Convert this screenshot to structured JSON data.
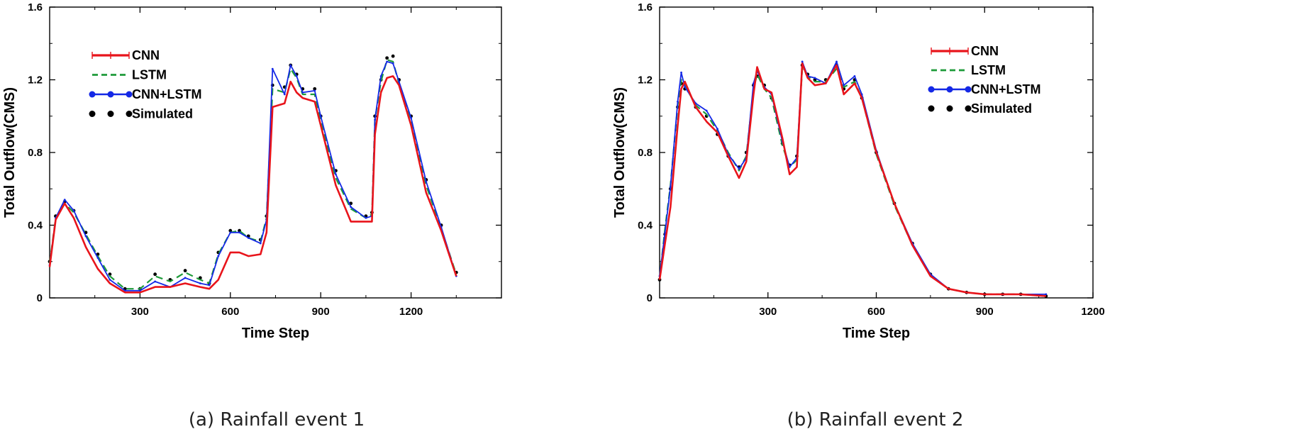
{
  "colors": {
    "CNN": "#e8141b",
    "LSTM": "#1e9b3a",
    "CNN+LSTM": "#1428e6",
    "Simulated": "#000000"
  },
  "chart_data": [
    {
      "type": "line",
      "caption": "(a) Rainfall event 1",
      "xlabel": "Time Step",
      "ylabel": "Total Outflow(CMS)",
      "xlim": [
        0,
        1500
      ],
      "ylim": [
        0,
        1.6
      ],
      "xticks": [
        "300",
        "600",
        "900",
        "1200"
      ],
      "yticks": [
        "0",
        "0.4",
        "0.8",
        "1.2",
        "1.6"
      ],
      "legend": {
        "position": "top-left",
        "labels": [
          "CNN",
          "LSTM",
          "CNN+LSTM",
          "Simulated"
        ]
      },
      "series": [
        {
          "name": "Simulated",
          "x": [
            0,
            20,
            50,
            80,
            120,
            160,
            200,
            250,
            300,
            350,
            400,
            450,
            500,
            530,
            560,
            600,
            630,
            660,
            700,
            720,
            740,
            780,
            800,
            820,
            840,
            880,
            900,
            950,
            1000,
            1050,
            1070,
            1080,
            1100,
            1120,
            1140,
            1160,
            1200,
            1250,
            1300,
            1350
          ],
          "y": [
            0.2,
            0.45,
            0.53,
            0.48,
            0.36,
            0.24,
            0.13,
            0.05,
            0.05,
            0.13,
            0.1,
            0.15,
            0.11,
            0.08,
            0.25,
            0.37,
            0.37,
            0.34,
            0.32,
            0.45,
            1.17,
            1.16,
            1.28,
            1.23,
            1.15,
            1.15,
            1.0,
            0.7,
            0.52,
            0.45,
            0.47,
            1.0,
            1.2,
            1.32,
            1.33,
            1.2,
            1.0,
            0.65,
            0.4,
            0.14
          ]
        },
        {
          "name": "LSTM",
          "x": [
            0,
            20,
            50,
            80,
            120,
            160,
            200,
            250,
            300,
            350,
            400,
            450,
            500,
            530,
            560,
            600,
            630,
            660,
            700,
            720,
            740,
            780,
            800,
            820,
            840,
            880,
            900,
            950,
            1000,
            1050,
            1070,
            1080,
            1100,
            1120,
            1140,
            1160,
            1200,
            1250,
            1300,
            1350
          ],
          "y": [
            0.19,
            0.44,
            0.52,
            0.47,
            0.35,
            0.23,
            0.12,
            0.05,
            0.05,
            0.12,
            0.09,
            0.14,
            0.1,
            0.08,
            0.24,
            0.36,
            0.37,
            0.33,
            0.31,
            0.44,
            1.15,
            1.13,
            1.26,
            1.21,
            1.12,
            1.12,
            0.97,
            0.66,
            0.49,
            0.44,
            0.46,
            0.98,
            1.19,
            1.31,
            1.3,
            1.18,
            0.98,
            0.62,
            0.38,
            0.13
          ]
        },
        {
          "name": "CNN+LSTM",
          "x": [
            0,
            20,
            50,
            80,
            120,
            160,
            200,
            250,
            300,
            350,
            400,
            450,
            500,
            530,
            560,
            600,
            630,
            660,
            700,
            720,
            740,
            780,
            800,
            820,
            840,
            880,
            900,
            950,
            1000,
            1050,
            1070,
            1080,
            1100,
            1120,
            1140,
            1160,
            1200,
            1250,
            1300,
            1350
          ],
          "y": [
            0.18,
            0.44,
            0.54,
            0.48,
            0.34,
            0.22,
            0.1,
            0.04,
            0.04,
            0.09,
            0.06,
            0.11,
            0.08,
            0.07,
            0.23,
            0.36,
            0.36,
            0.33,
            0.3,
            0.43,
            1.26,
            1.12,
            1.28,
            1.22,
            1.13,
            1.14,
            1.0,
            0.68,
            0.5,
            0.44,
            0.45,
            0.98,
            1.22,
            1.3,
            1.29,
            1.19,
            0.99,
            0.64,
            0.39,
            0.12
          ]
        },
        {
          "name": "CNN",
          "x": [
            0,
            20,
            50,
            80,
            120,
            160,
            200,
            250,
            300,
            350,
            400,
            450,
            500,
            530,
            560,
            600,
            630,
            660,
            700,
            720,
            740,
            780,
            800,
            820,
            840,
            880,
            900,
            950,
            1000,
            1050,
            1070,
            1080,
            1100,
            1120,
            1140,
            1160,
            1200,
            1250,
            1300,
            1350
          ],
          "y": [
            0.17,
            0.43,
            0.52,
            0.44,
            0.28,
            0.16,
            0.08,
            0.03,
            0.03,
            0.06,
            0.06,
            0.08,
            0.06,
            0.05,
            0.1,
            0.25,
            0.25,
            0.23,
            0.24,
            0.36,
            1.05,
            1.07,
            1.19,
            1.13,
            1.1,
            1.08,
            0.95,
            0.62,
            0.42,
            0.42,
            0.42,
            0.9,
            1.13,
            1.21,
            1.22,
            1.17,
            0.95,
            0.58,
            0.37,
            0.12
          ]
        }
      ]
    },
    {
      "type": "line",
      "caption": "(b) Rainfall event 2",
      "xlabel": "Time Step",
      "ylabel": "Total Outflow(CMS)",
      "xlim": [
        0,
        1200
      ],
      "ylim": [
        0,
        1.6
      ],
      "xticks": [
        "300",
        "600",
        "900",
        "1200"
      ],
      "yticks": [
        "0",
        "0.4",
        "0.8",
        "1.2",
        "1.6"
      ],
      "legend": {
        "position": "top-right",
        "labels": [
          "CNN",
          "LSTM",
          "CNN+LSTM",
          "Simulated"
        ]
      },
      "series": [
        {
          "name": "Simulated",
          "x": [
            0,
            15,
            30,
            50,
            60,
            70,
            100,
            130,
            160,
            190,
            220,
            240,
            260,
            270,
            290,
            310,
            340,
            360,
            380,
            395,
            410,
            430,
            460,
            490,
            510,
            540,
            560,
            600,
            650,
            700,
            750,
            800,
            850,
            900,
            950,
            1000,
            1070
          ],
          "y": [
            0.1,
            0.35,
            0.6,
            1.05,
            1.18,
            1.15,
            1.05,
            1.0,
            0.9,
            0.78,
            0.72,
            0.8,
            1.17,
            1.22,
            1.17,
            1.1,
            0.85,
            0.73,
            0.78,
            1.28,
            1.23,
            1.2,
            1.2,
            1.28,
            1.15,
            1.2,
            1.1,
            0.8,
            0.52,
            0.3,
            0.13,
            0.05,
            0.03,
            0.02,
            0.02,
            0.02,
            0.01
          ]
        },
        {
          "name": "LSTM",
          "x": [
            0,
            15,
            30,
            50,
            60,
            70,
            100,
            130,
            160,
            190,
            220,
            240,
            260,
            270,
            290,
            310,
            340,
            360,
            380,
            395,
            410,
            430,
            460,
            490,
            510,
            540,
            560,
            600,
            650,
            700,
            750,
            800,
            850,
            900,
            950,
            1000,
            1070
          ],
          "y": [
            0.11,
            0.38,
            0.62,
            1.06,
            1.2,
            1.17,
            1.06,
            1.01,
            0.92,
            0.8,
            0.7,
            0.78,
            1.15,
            1.23,
            1.15,
            1.1,
            0.84,
            0.72,
            0.76,
            1.26,
            1.22,
            1.19,
            1.19,
            1.26,
            1.16,
            1.19,
            1.1,
            0.79,
            0.51,
            0.29,
            0.12,
            0.05,
            0.03,
            0.02,
            0.02,
            0.02,
            0.01
          ]
        },
        {
          "name": "CNN+LSTM",
          "x": [
            0,
            15,
            30,
            50,
            60,
            70,
            100,
            130,
            160,
            190,
            220,
            240,
            260,
            270,
            290,
            310,
            340,
            360,
            380,
            395,
            410,
            430,
            460,
            490,
            510,
            540,
            560,
            600,
            650,
            700,
            750,
            800,
            850,
            900,
            950,
            1000,
            1070
          ],
          "y": [
            0.12,
            0.36,
            0.61,
            1.08,
            1.24,
            1.16,
            1.07,
            1.03,
            0.93,
            0.79,
            0.71,
            0.77,
            1.18,
            1.25,
            1.16,
            1.12,
            0.86,
            0.72,
            0.77,
            1.3,
            1.22,
            1.21,
            1.18,
            1.3,
            1.17,
            1.22,
            1.12,
            0.81,
            0.52,
            0.3,
            0.13,
            0.05,
            0.03,
            0.02,
            0.02,
            0.02,
            0.02
          ]
        },
        {
          "name": "CNN",
          "x": [
            0,
            15,
            30,
            50,
            60,
            70,
            100,
            130,
            160,
            190,
            220,
            240,
            260,
            270,
            290,
            310,
            340,
            360,
            380,
            395,
            410,
            430,
            460,
            490,
            510,
            540,
            560,
            600,
            650,
            700,
            750,
            800,
            850,
            900,
            950,
            1000,
            1070
          ],
          "y": [
            0.1,
            0.3,
            0.5,
            0.95,
            1.15,
            1.19,
            1.05,
            0.97,
            0.91,
            0.78,
            0.66,
            0.75,
            1.12,
            1.27,
            1.15,
            1.13,
            0.88,
            0.68,
            0.72,
            1.29,
            1.21,
            1.17,
            1.18,
            1.28,
            1.12,
            1.18,
            1.1,
            0.8,
            0.52,
            0.29,
            0.12,
            0.05,
            0.03,
            0.02,
            0.02,
            0.02,
            0.01
          ]
        }
      ]
    }
  ]
}
